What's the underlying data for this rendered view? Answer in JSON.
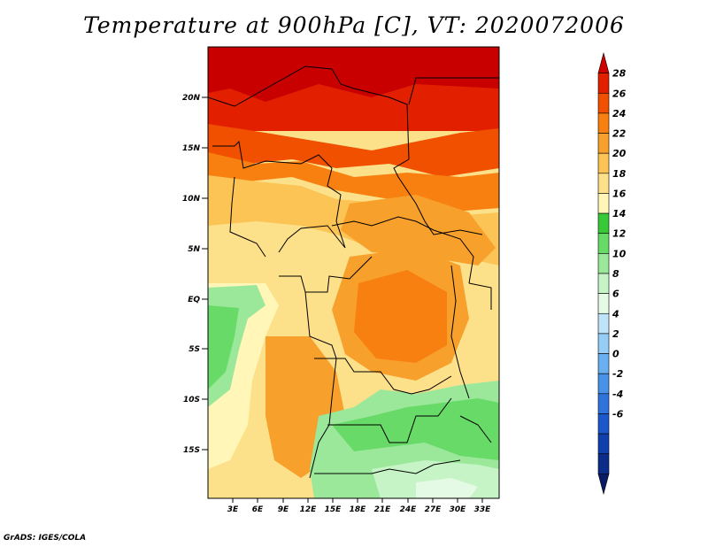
{
  "title": "Temperature at 900hPa [C], VT: 2020072006",
  "footer": "GrADS: IGES/COLA",
  "map": {
    "lon_range": [
      0,
      35
    ],
    "lat_range": [
      -20,
      25
    ],
    "lat_labels": [
      "20N",
      "15N",
      "10N",
      "5N",
      "EQ",
      "5S",
      "10S",
      "15S"
    ],
    "lon_labels": [
      "3E",
      "6E",
      "9E",
      "12E",
      "15E",
      "18E",
      "21E",
      "24E",
      "27E",
      "30E",
      "33E"
    ]
  },
  "colorbar": {
    "labels": [
      "28",
      "26",
      "24",
      "22",
      "20",
      "18",
      "16",
      "14",
      "12",
      "10",
      "8",
      "6",
      "4",
      "2",
      "0",
      "-2",
      "-4",
      "-6"
    ],
    "colors": [
      "#d00000",
      "#e22000",
      "#f05000",
      "#f88010",
      "#f8a02c",
      "#fbc455",
      "#fde08a",
      "#fff6b8",
      "#38c838",
      "#68da68",
      "#9be89b",
      "#c6f4c6",
      "#e4fae4",
      "#bfe4fa",
      "#96cdf6",
      "#6aaff0",
      "#4892e8",
      "#2e74dc",
      "#1c58ca",
      "#1040ae",
      "#0c2c8a",
      "#081c66"
    ]
  }
}
